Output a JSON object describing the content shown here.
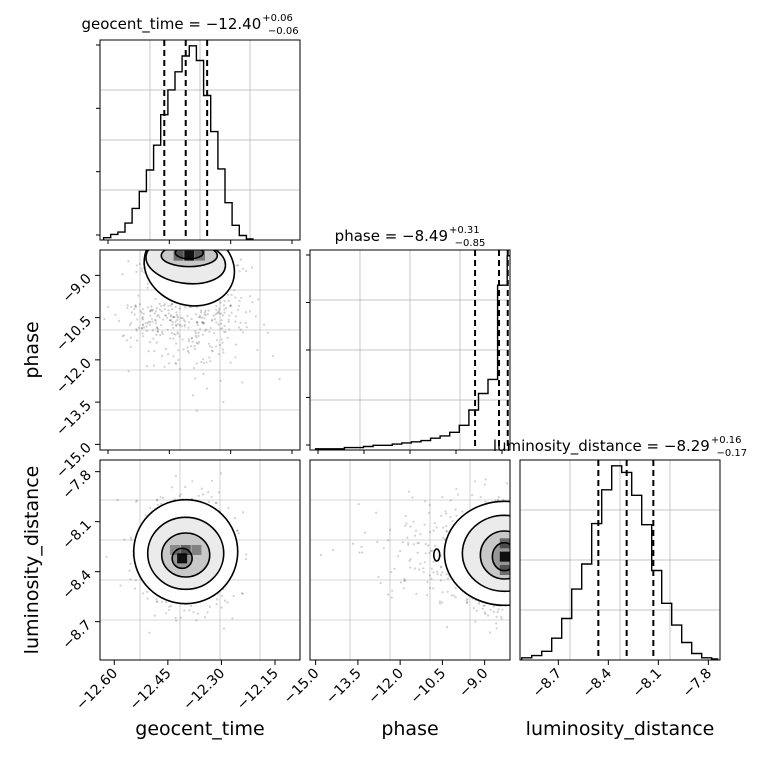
{
  "chart_data": {
    "type": "corner",
    "parameters": [
      "geocent_time",
      "phase",
      "luminosity_distance"
    ],
    "panels": {
      "geocent_time_hist": {
        "type": "histogram",
        "title_prefix": "geocent_time = ",
        "median": "−12.40",
        "plus": "+0.06",
        "minus": "−0.06",
        "xlim": [
          -12.64,
          -12.08
        ],
        "quantiles": [
          -12.46,
          -12.4,
          -12.34
        ],
        "bin_edges": [
          -12.63,
          -12.61,
          -12.59,
          -12.57,
          -12.55,
          -12.53,
          -12.51,
          -12.49,
          -12.47,
          -12.45,
          -12.43,
          -12.41,
          -12.39,
          -12.37,
          -12.35,
          -12.33,
          -12.31,
          -12.29,
          -12.27,
          -12.25,
          -12.23,
          -12.21
        ],
        "counts": [
          2,
          5,
          7,
          15,
          28,
          43,
          62,
          84,
          111,
          133,
          149,
          163,
          172,
          159,
          128,
          96,
          63,
          33,
          13,
          4,
          1
        ]
      },
      "phase_hist": {
        "type": "histogram",
        "title_prefix": "phase = ",
        "median": "−8.49",
        "plus": "+0.31",
        "minus": "−0.85",
        "xlim": [
          -15.2,
          -8.1
        ],
        "quantiles": [
          -9.34,
          -8.49,
          -8.18
        ],
        "bin_edges": [
          -15.0,
          -14.66,
          -14.32,
          -13.98,
          -13.64,
          -13.3,
          -12.96,
          -12.62,
          -12.28,
          -11.94,
          -11.6,
          -11.26,
          -10.92,
          -10.58,
          -10.24,
          -9.9,
          -9.56,
          -9.22,
          -8.88,
          -8.54,
          -8.2,
          -8.1
        ],
        "counts": [
          1,
          1,
          1,
          2,
          2,
          3,
          4,
          4,
          5,
          6,
          7,
          8,
          10,
          12,
          15,
          21,
          34,
          48,
          60,
          140,
          165
        ]
      },
      "luminosity_distance_hist": {
        "type": "histogram",
        "title_prefix": "luminosity_distance = ",
        "median": "−8.29",
        "plus": "+0.16",
        "minus": "−0.17",
        "xlim": [
          -8.93,
          -7.73
        ],
        "quantiles": [
          -8.46,
          -8.29,
          -8.13
        ],
        "bin_edges": [
          -8.92,
          -8.86,
          -8.8,
          -8.74,
          -8.68,
          -8.62,
          -8.56,
          -8.5,
          -8.44,
          -8.38,
          -8.32,
          -8.26,
          -8.2,
          -8.14,
          -8.08,
          -8.02,
          -7.96,
          -7.9,
          -7.84,
          -7.78,
          -7.74
        ],
        "counts": [
          2,
          4,
          8,
          20,
          38,
          65,
          88,
          125,
          156,
          178,
          172,
          151,
          124,
          82,
          52,
          32,
          16,
          6,
          2,
          1
        ]
      },
      "phase_vs_geocent_time": {
        "type": "2d-density",
        "x_param": "geocent_time",
        "y_param": "phase",
        "xlim": [
          -12.64,
          -12.08
        ],
        "ylim": [
          -15.2,
          -8.1
        ],
        "peak": [
          -12.39,
          -8.35
        ],
        "contour_levels": 4
      },
      "luminosity_distance_vs_geocent_time": {
        "type": "2d-density",
        "x_param": "geocent_time",
        "y_param": "luminosity_distance",
        "xlim": [
          -12.64,
          -12.08
        ],
        "ylim": [
          -8.93,
          -7.73
        ],
        "peak": [
          -12.4,
          -8.29
        ],
        "contour_levels": 4
      },
      "luminosity_distance_vs_phase": {
        "type": "2d-density",
        "x_param": "phase",
        "y_param": "luminosity_distance",
        "xlim": [
          -15.2,
          -8.1
        ],
        "ylim": [
          -8.93,
          -7.73
        ],
        "peak": [
          -8.3,
          -8.29
        ],
        "contour_levels": 4
      }
    },
    "axis_ticks": {
      "geocent_time": [
        "−12.60",
        "−12.45",
        "−12.30",
        "−12.15"
      ],
      "phase_x": [
        "−15.0",
        "−13.5",
        "−12.0",
        "−10.5",
        "−9.0"
      ],
      "phase_y": [
        "−9.0",
        "−10.5",
        "−12.0",
        "−13.5",
        "−15.0"
      ],
      "luminosity_distance_x": [
        "−8.7",
        "−8.4",
        "−8.1",
        "−7.8"
      ],
      "luminosity_distance_y": [
        "−7.8",
        "−8.1",
        "−8.4",
        "−8.7"
      ]
    },
    "axis_labels": {
      "x": [
        "geocent_time",
        "phase",
        "luminosity_distance"
      ],
      "y": [
        "phase",
        "luminosity_distance"
      ]
    },
    "grid": true,
    "colors": {
      "line": "#000000",
      "grid": "#b0b0b0",
      "points": "#000000",
      "density": "#000000"
    }
  }
}
